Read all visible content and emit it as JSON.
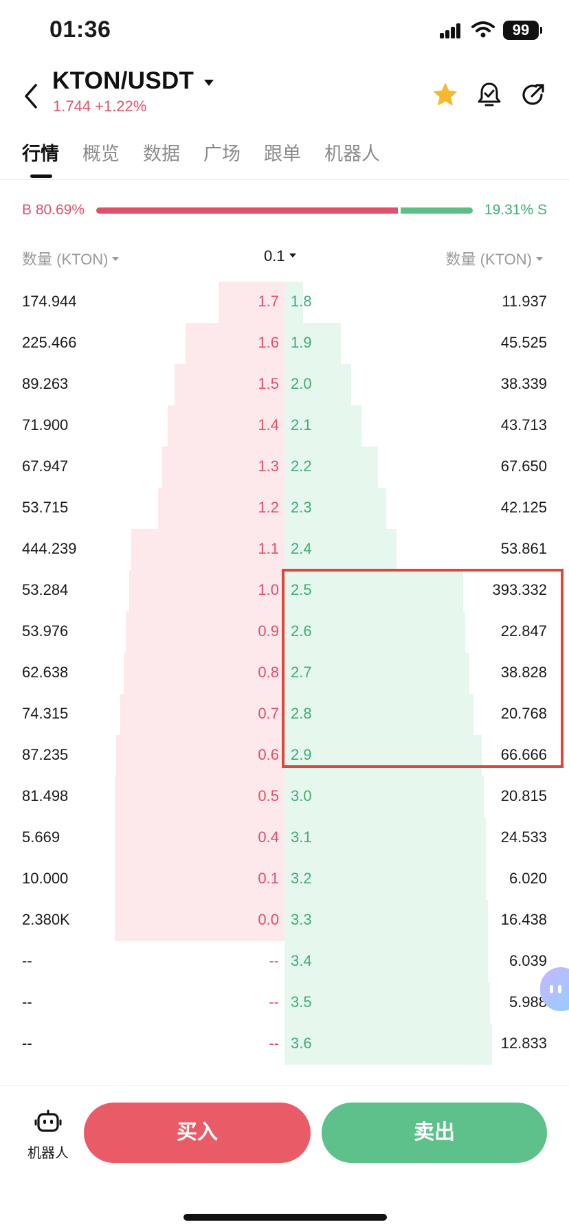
{
  "status_bar": {
    "time": "01:36",
    "battery": "99",
    "icons": [
      "signal-icon",
      "wifi-icon",
      "battery-icon"
    ]
  },
  "header": {
    "pair": "KTON/USDT",
    "price": "1.744",
    "change": "+1.22%",
    "icons": [
      "back-icon",
      "caret-down-icon",
      "star-icon",
      "bell-icon",
      "share-icon"
    ]
  },
  "tabs": [
    {
      "label": "行情",
      "active": true
    },
    {
      "label": "概览",
      "active": false
    },
    {
      "label": "数据",
      "active": false
    },
    {
      "label": "广场",
      "active": false
    },
    {
      "label": "跟单",
      "active": false
    },
    {
      "label": "机器人",
      "active": false
    }
  ],
  "ratio": {
    "buy_label": "B 80.69%",
    "sell_label": "19.31% S",
    "buy_percent": 80.69,
    "sell_percent": 19.31
  },
  "book_header": {
    "left": "数量 (KTON)",
    "precision": "0.1",
    "right": "数量 (KTON)"
  },
  "order_book": [
    {
      "bid_qty": "174.944",
      "bid_price": "1.7",
      "ask_price": "1.8",
      "ask_qty": "11.937",
      "bid_depth": 0.36,
      "ask_depth": 0.09
    },
    {
      "bid_qty": "225.466",
      "bid_price": "1.6",
      "ask_price": "1.9",
      "ask_qty": "45.525",
      "bid_depth": 0.54,
      "ask_depth": 0.27
    },
    {
      "bid_qty": "89.263",
      "bid_price": "1.5",
      "ask_price": "2.0",
      "ask_qty": "38.339",
      "bid_depth": 0.6,
      "ask_depth": 0.32
    },
    {
      "bid_qty": "71.900",
      "bid_price": "1.4",
      "ask_price": "2.1",
      "ask_qty": "43.713",
      "bid_depth": 0.64,
      "ask_depth": 0.37
    },
    {
      "bid_qty": "67.947",
      "bid_price": "1.3",
      "ask_price": "2.2",
      "ask_qty": "67.650",
      "bid_depth": 0.67,
      "ask_depth": 0.45
    },
    {
      "bid_qty": "53.715",
      "bid_price": "1.2",
      "ask_price": "2.3",
      "ask_qty": "42.125",
      "bid_depth": 0.69,
      "ask_depth": 0.49
    },
    {
      "bid_qty": "444.239",
      "bid_price": "1.1",
      "ask_price": "2.4",
      "ask_qty": "53.861",
      "bid_depth": 0.84,
      "ask_depth": 0.54
    },
    {
      "bid_qty": "53.284",
      "bid_price": "1.0",
      "ask_price": "2.5",
      "ask_qty": "393.332",
      "bid_depth": 0.85,
      "ask_depth": 0.86
    },
    {
      "bid_qty": "53.976",
      "bid_price": "0.9",
      "ask_price": "2.6",
      "ask_qty": "22.847",
      "bid_depth": 0.87,
      "ask_depth": 0.87
    },
    {
      "bid_qty": "62.638",
      "bid_price": "0.8",
      "ask_price": "2.7",
      "ask_qty": "38.828",
      "bid_depth": 0.88,
      "ask_depth": 0.89
    },
    {
      "bid_qty": "74.315",
      "bid_price": "0.7",
      "ask_price": "2.8",
      "ask_qty": "20.768",
      "bid_depth": 0.9,
      "ask_depth": 0.91
    },
    {
      "bid_qty": "87.235",
      "bid_price": "0.6",
      "ask_price": "2.9",
      "ask_qty": "66.666",
      "bid_depth": 0.92,
      "ask_depth": 0.95
    },
    {
      "bid_qty": "81.498",
      "bid_price": "0.5",
      "ask_price": "3.0",
      "ask_qty": "20.815",
      "bid_depth": 0.93,
      "ask_depth": 0.96
    },
    {
      "bid_qty": "5.669",
      "bid_price": "0.4",
      "ask_price": "3.1",
      "ask_qty": "24.533",
      "bid_depth": 0.93,
      "ask_depth": 0.97
    },
    {
      "bid_qty": "10.000",
      "bid_price": "0.1",
      "ask_price": "3.2",
      "ask_qty": "6.020",
      "bid_depth": 0.93,
      "ask_depth": 0.97
    },
    {
      "bid_qty": "2.380K",
      "bid_price": "0.0",
      "ask_price": "3.3",
      "ask_qty": "16.438",
      "bid_depth": 0.93,
      "ask_depth": 0.98
    },
    {
      "bid_qty": "--",
      "bid_price": "--",
      "ask_price": "3.4",
      "ask_qty": "6.039",
      "bid_depth": 0,
      "ask_depth": 0.98
    },
    {
      "bid_qty": "--",
      "bid_price": "--",
      "ask_price": "3.5",
      "ask_qty": "5.988",
      "bid_depth": 0,
      "ask_depth": 0.99
    },
    {
      "bid_qty": "--",
      "bid_price": "--",
      "ask_price": "3.6",
      "ask_qty": "12.833",
      "bid_depth": 0,
      "ask_depth": 1.0
    }
  ],
  "bottom_bar": {
    "robot_label": "机器人",
    "buy_label": "买入",
    "sell_label": "卖出"
  },
  "colors": {
    "buy": "#e0506a",
    "sell": "#3fae73",
    "bid_depth": "#fde8ec",
    "ask_depth": "#e6f7ee",
    "highlight": "#e0443a"
  }
}
